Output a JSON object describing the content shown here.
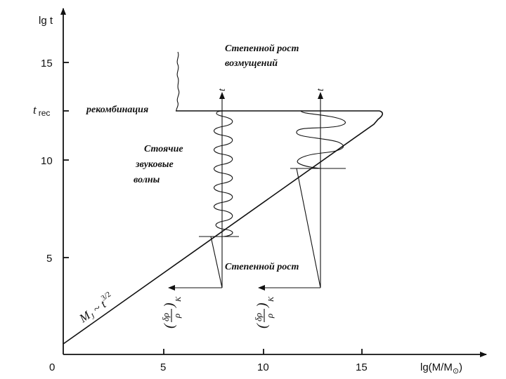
{
  "axes": {
    "y_title": "lg t",
    "x_title": "lg(M/M",
    "x_title_sub": "⊙",
    "x_title_close": ")",
    "y_ticks": [
      "5",
      "10",
      "15"
    ],
    "x_ticks": [
      "0",
      "5",
      "10",
      "15"
    ],
    "y_special_tick": "t",
    "y_special_tick_sub": "rec"
  },
  "labels": {
    "recombination": "рекомбинация",
    "power_growth_top_1": "Степенной рост",
    "power_growth_top_2": "возмущений",
    "standing_1": "Стоячие",
    "standing_2": "звуковые",
    "standing_3": "волны",
    "power_growth_bottom": "Степенной рост",
    "jeans_main": "M",
    "jeans_sub": "J",
    "jeans_rel": " ~ t",
    "jeans_exp": "3/2",
    "t_arrow_1": "t",
    "t_arrow_2": "t",
    "pert_1_num": "δρ",
    "pert_1_den": "ρ",
    "pert_1_sub": "K",
    "pert_2_num": "δρ",
    "pert_2_den": "ρ",
    "pert_2_sub": "K"
  }
}
